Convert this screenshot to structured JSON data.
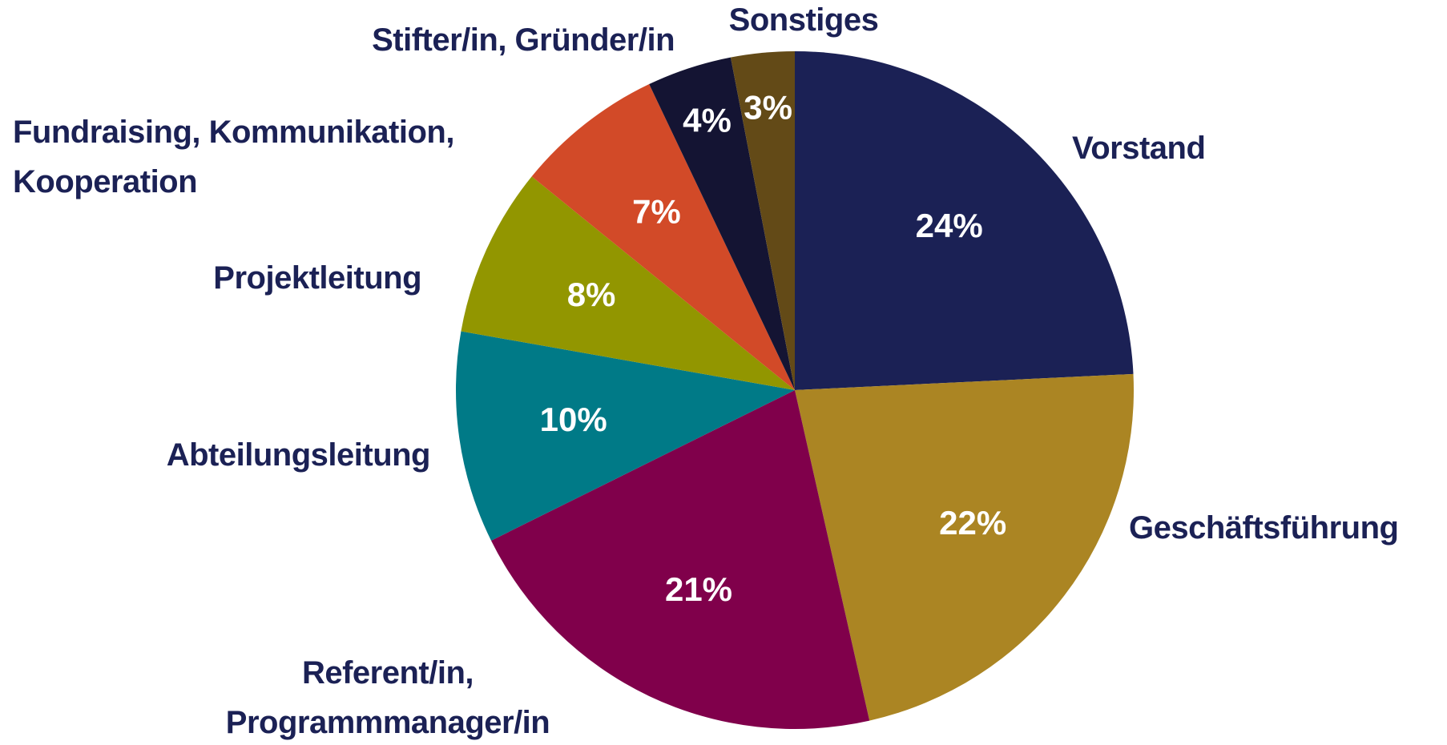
{
  "chart_data": {
    "type": "pie",
    "categories": [
      "Vorstand",
      "Geschäftsführung",
      "Referent/in,\nProgrammmanager/in",
      "Abteilungsleitung",
      "Projektleitung",
      "Fundraising, Kommunikation,\nKooperation",
      "Stifter/in, Gründer/in",
      "Sonstiges"
    ],
    "values": [
      24,
      22,
      21,
      10,
      8,
      7,
      4,
      3
    ],
    "value_labels": [
      "24%",
      "22%",
      "21%",
      "10%",
      "8%",
      "7%",
      "4%",
      "3%"
    ],
    "colors": [
      "#1b2155",
      "#ab8523",
      "#80004b",
      "#007a87",
      "#929600",
      "#d24a28",
      "#141433",
      "#634a17"
    ]
  }
}
